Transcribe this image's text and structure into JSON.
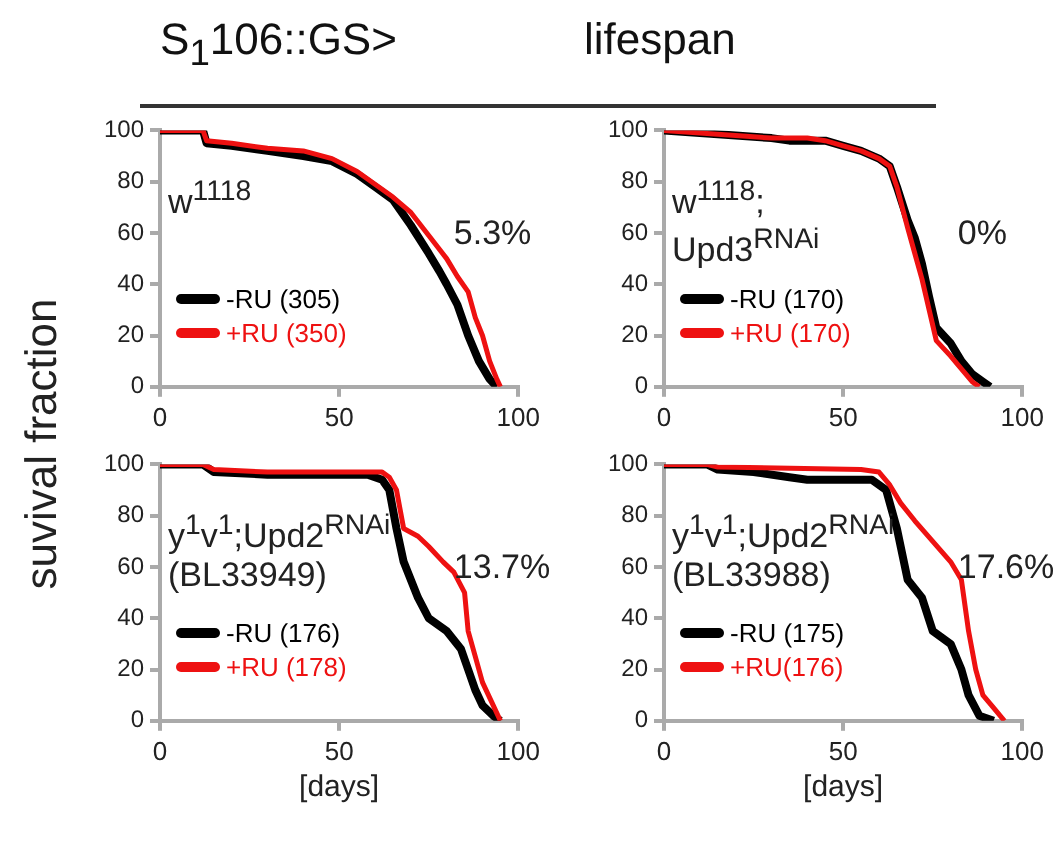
{
  "chart_data": [
    {
      "type": "line",
      "title": "S$_{1}$106::GS>",
      "xlim": [
        0,
        100
      ],
      "xticks": [
        0,
        50,
        100
      ],
      "ylim": [
        0,
        100
      ],
      "yticks": [
        0,
        20,
        40,
        60,
        80,
        100
      ],
      "grid": false,
      "legend": "bottom left",
      "marker": "none",
      "annotations": [
        "w$^{1118}$",
        "5.3%"
      ],
      "series": [
        {
          "name": "-RU (305)",
          "color": "#000000",
          "x": [
            0,
            12,
            13,
            20,
            30,
            40,
            48,
            55,
            60,
            65,
            70,
            75,
            78,
            80,
            83,
            86,
            89,
            92,
            94
          ],
          "values": [
            100,
            100,
            95,
            94,
            92,
            90,
            88,
            83,
            78,
            73,
            63,
            52,
            45,
            40,
            32,
            20,
            10,
            3,
            0
          ]
        },
        {
          "name": "+RU (350)",
          "color": "#ee1111",
          "x": [
            0,
            12,
            13,
            20,
            30,
            40,
            48,
            55,
            60,
            65,
            70,
            75,
            80,
            83,
            86,
            88,
            90,
            92,
            94,
            95
          ],
          "values": [
            100,
            100,
            96,
            95,
            93,
            92,
            89,
            84,
            79,
            74,
            68,
            59,
            50,
            43,
            37,
            27,
            20,
            10,
            3,
            0
          ]
        }
      ]
    },
    {
      "type": "line",
      "title": "lifespan",
      "xlim": [
        0,
        100
      ],
      "xticks": [
        0,
        50,
        100
      ],
      "ylim": [
        0,
        100
      ],
      "yticks": [
        0,
        20,
        40,
        60,
        80,
        100
      ],
      "grid": false,
      "legend": "bottom left",
      "marker": "none",
      "annotations": [
        "w$^{1118}$;\nUpd3$^{RNAi}$",
        "0%"
      ],
      "series": [
        {
          "name": "-RU (170)",
          "color": "#000000",
          "x": [
            0,
            10,
            20,
            30,
            35,
            45,
            50,
            55,
            60,
            63,
            65,
            68,
            70,
            72,
            74,
            76,
            78,
            80,
            83,
            86,
            89,
            91
          ],
          "values": [
            100,
            99,
            98,
            97,
            96,
            96,
            94,
            92,
            89,
            86,
            78,
            65,
            58,
            48,
            35,
            23,
            20,
            17,
            10,
            5,
            2,
            0
          ]
        },
        {
          "name": "+RU (170)",
          "color": "#ee1111",
          "x": [
            0,
            10,
            20,
            30,
            40,
            45,
            50,
            55,
            60,
            63,
            65,
            68,
            70,
            72,
            74,
            76,
            78,
            80,
            83,
            86,
            88
          ],
          "values": [
            100,
            99,
            98,
            97,
            97,
            96,
            94,
            92,
            89,
            86,
            78,
            62,
            52,
            42,
            30,
            18,
            15,
            12,
            7,
            2,
            0
          ]
        }
      ]
    },
    {
      "type": "line",
      "xlabel": "[days]",
      "ylabel": "suvival fraction",
      "xlim": [
        0,
        100
      ],
      "xticks": [
        0,
        50,
        100
      ],
      "ylim": [
        0,
        100
      ],
      "yticks": [
        0,
        20,
        40,
        60,
        80,
        100
      ],
      "grid": false,
      "legend": "bottom left",
      "marker": "none",
      "annotations": [
        "y$^{1}$v$^{1}$;Upd2$^{RNAi}$\n(BL33949)",
        "13.7%"
      ],
      "series": [
        {
          "name": "-RU (176)",
          "color": "#000000",
          "x": [
            0,
            12,
            15,
            30,
            58,
            62,
            64,
            66,
            68,
            72,
            75,
            80,
            84,
            86,
            88,
            90,
            93,
            95
          ],
          "values": [
            100,
            100,
            97,
            96,
            96,
            94,
            90,
            75,
            62,
            48,
            40,
            35,
            28,
            20,
            12,
            6,
            2,
            0
          ]
        },
        {
          "name": "+RU (178)",
          "color": "#ee1111",
          "x": [
            0,
            12,
            15,
            30,
            62,
            64,
            66,
            68,
            72,
            75,
            79,
            82,
            85,
            86,
            88,
            90,
            93,
            95
          ],
          "values": [
            100,
            100,
            98,
            97,
            97,
            95,
            90,
            75,
            72,
            68,
            62,
            58,
            50,
            35,
            25,
            15,
            6,
            0
          ]
        }
      ]
    },
    {
      "type": "line",
      "xlabel": "[days]",
      "xlim": [
        0,
        100
      ],
      "xticks": [
        0,
        50,
        100
      ],
      "ylim": [
        0,
        100
      ],
      "yticks": [
        0,
        20,
        40,
        60,
        80,
        100
      ],
      "grid": false,
      "legend": "bottom left",
      "marker": "none",
      "annotations": [
        "y$^{1}$v$^{1}$;Upd2$^{RNAi}$\n(BL33988)",
        "17.6%"
      ],
      "series": [
        {
          "name": "-RU (175)",
          "color": "#000000",
          "x": [
            0,
            12,
            15,
            25,
            35,
            40,
            58,
            62,
            65,
            68,
            72,
            75,
            80,
            83,
            85,
            88,
            92
          ],
          "values": [
            100,
            100,
            98,
            97,
            95,
            94,
            94,
            90,
            75,
            55,
            48,
            35,
            30,
            20,
            10,
            2,
            0
          ]
        },
        {
          "name": "+RU(176)",
          "color": "#ee1111",
          "x": [
            0,
            12,
            15,
            55,
            60,
            63,
            66,
            70,
            75,
            80,
            83,
            85,
            87,
            89,
            92,
            95
          ],
          "values": [
            100,
            100,
            99,
            98,
            97,
            92,
            85,
            78,
            70,
            62,
            55,
            35,
            20,
            10,
            5,
            0
          ]
        }
      ]
    }
  ]
}
